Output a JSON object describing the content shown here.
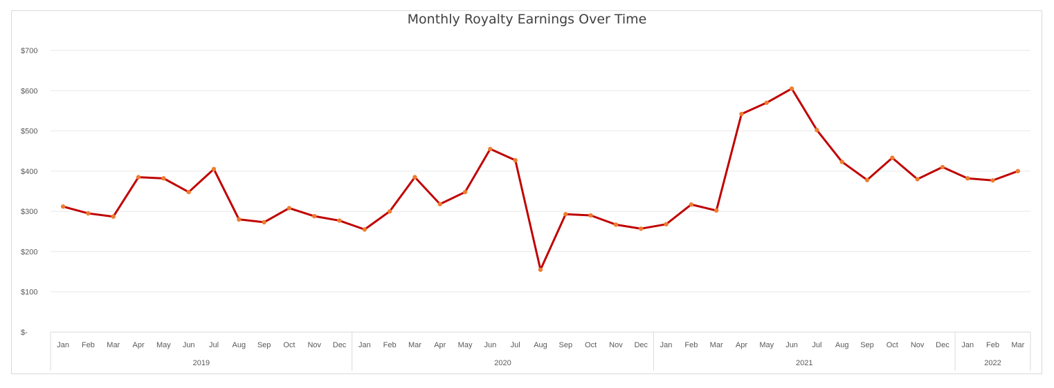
{
  "chart_data": {
    "type": "line",
    "title": "Monthly Royalty Earnings Over Time",
    "xlabel": "",
    "ylabel": "",
    "ylim": [
      0,
      700
    ],
    "yticks": [
      "$-",
      "$100",
      "$200",
      "$300",
      "$400",
      "$500",
      "$600",
      "$700"
    ],
    "grid": true,
    "categories": [
      "Jan",
      "Feb",
      "Mar",
      "Apr",
      "May",
      "Jun",
      "Jul",
      "Aug",
      "Sep",
      "Oct",
      "Nov",
      "Dec",
      "Jan",
      "Feb",
      "Mar",
      "Apr",
      "May",
      "Jun",
      "Jul",
      "Aug",
      "Sep",
      "Oct",
      "Nov",
      "Dec",
      "Jan",
      "Feb",
      "Mar",
      "Apr",
      "May",
      "Jun",
      "Jul",
      "Aug",
      "Sep",
      "Oct",
      "Nov",
      "Dec",
      "Jan",
      "Feb",
      "Mar"
    ],
    "year_groups": [
      {
        "label": "2019",
        "count": 12
      },
      {
        "label": "2020",
        "count": 12
      },
      {
        "label": "2021",
        "count": 12
      },
      {
        "label": "2022",
        "count": 3
      }
    ],
    "series": [
      {
        "values": [
          312,
          295,
          287,
          385,
          382,
          348,
          405,
          280,
          273,
          308,
          288,
          277,
          255,
          300,
          385,
          318,
          348,
          455,
          427,
          155,
          293,
          290,
          267,
          257,
          268,
          317,
          302,
          542,
          570,
          605,
          502,
          423,
          378,
          433,
          380,
          410,
          382,
          377,
          400
        ],
        "line_color": "#c00000",
        "marker_color": "#ed7d31"
      }
    ]
  }
}
